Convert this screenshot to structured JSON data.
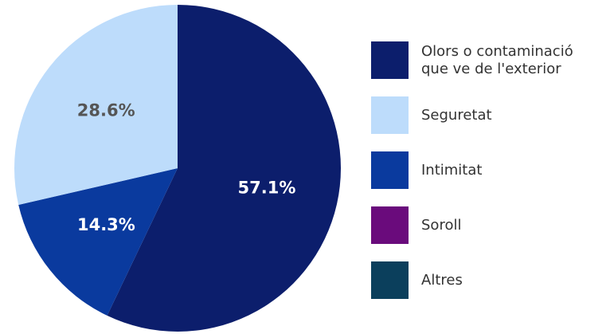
{
  "chart_data": {
    "type": "pie",
    "categories": [
      "Olors o contaminació que ve de l'exterior",
      "Seguretat",
      "Intimitat",
      "Soroll",
      "Altres"
    ],
    "values": [
      57.1,
      28.6,
      14.3,
      0,
      0
    ],
    "value_labels": [
      "57.1%",
      "28.6%",
      "14.3%",
      null,
      null
    ],
    "colors": [
      "#0c1e6c",
      "#bddcfb",
      "#0a3a9e",
      "#6a0b7c",
      "#0b3f5c"
    ]
  }
}
